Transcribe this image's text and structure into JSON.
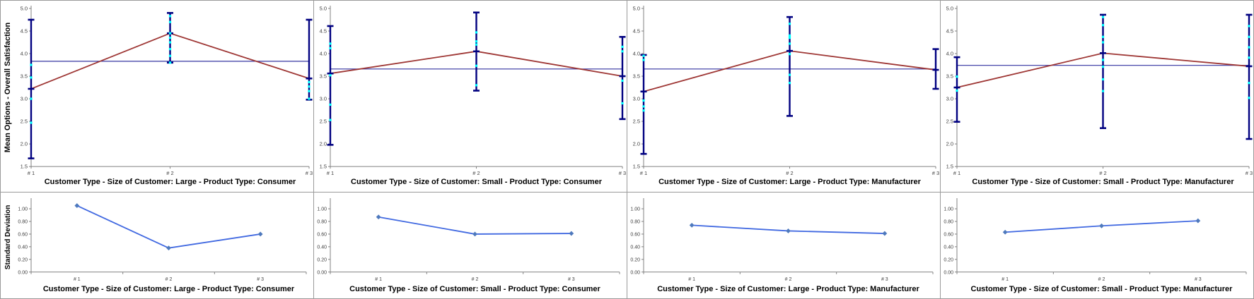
{
  "colors": {
    "axis": "#808080",
    "tick_text": "#3f3f3f",
    "title_text": "#000000",
    "mean_line": "#9e3634",
    "error_bar": "#000080",
    "reference_line": "#3333a0",
    "data_point": "#00ffff",
    "std_line": "#4169e1",
    "std_marker": "#4e79bd",
    "panel_border": "#9a9a9a"
  },
  "chart_data": [
    {
      "id": "mean-large-consumer",
      "type": "line-errorbar",
      "title": "Customer Type - Size of Customer: Large - Product Type: Consumer",
      "ylabel": "Mean Options - Overall Satisfaction",
      "categories": [
        "# 1",
        "# 2",
        "# 3"
      ],
      "ylim": [
        1.5,
        5.0
      ],
      "ytick_values": [
        5.0,
        4.5,
        4.0,
        3.5,
        3.0,
        2.5,
        2.0,
        1.5
      ],
      "ytick_labels": [
        "5.0",
        "4.5",
        "4.0",
        "3.5",
        "3.0",
        "2.5",
        "2.0",
        "1.5"
      ],
      "series": [
        {
          "name": "mean",
          "values": [
            3.22,
            4.45,
            3.45
          ]
        }
      ],
      "error_low": [
        1.68,
        3.8,
        2.98
      ],
      "error_high": [
        4.75,
        4.9,
        4.75
      ],
      "reference_line": 3.83,
      "scatter_points": [
        [
          3.75,
          3.47,
          3.0,
          2.47
        ],
        [
          4.83,
          4.7,
          4.45,
          4.35,
          4.25,
          4.1,
          3.95,
          3.8
        ],
        [
          3.37,
          3.27,
          3.17,
          3.0
        ]
      ]
    },
    {
      "id": "mean-small-consumer",
      "type": "line-errorbar",
      "title": "Customer Type - Size of Customer: Small - Product Type: Consumer",
      "ylabel": "",
      "categories": [
        "# 1",
        "# 2",
        "# 3"
      ],
      "ylim": [
        1.5,
        5.0
      ],
      "ytick_values": [
        5.0,
        4.5,
        4.0,
        3.5,
        3.0,
        2.5,
        2.0,
        1.5
      ],
      "ytick_labels": [
        "5.0",
        "4.5",
        "4.0",
        "3.5",
        "3.0",
        "2.5",
        "2.0",
        "1.5"
      ],
      "series": [
        {
          "name": "mean",
          "values": [
            3.56,
            4.05,
            3.5
          ]
        }
      ],
      "error_low": [
        1.98,
        3.18,
        2.55
      ],
      "error_high": [
        4.61,
        4.91,
        4.37
      ],
      "reference_line": 3.66,
      "scatter_points": [
        [
          4.22,
          4.12,
          3.52,
          2.87,
          2.53
        ],
        [
          4.47,
          4.27,
          4.2,
          3.73,
          3.3
        ],
        [
          4.15,
          4.05,
          3.4,
          2.9
        ]
      ]
    },
    {
      "id": "mean-large-manufacturer",
      "type": "line-errorbar",
      "title": "Customer Type - Size of Customer: Large - Product Type: Manufacturer",
      "ylabel": "",
      "categories": [
        "# 1",
        "# 2",
        "# 3"
      ],
      "ylim": [
        1.5,
        5.0
      ],
      "ytick_values": [
        5.0,
        4.5,
        4.0,
        3.5,
        3.0,
        2.5,
        2.0,
        1.5
      ],
      "ytick_labels": [
        "5.0",
        "4.5",
        "4.0",
        "3.5",
        "3.0",
        "2.5",
        "2.0",
        "1.5"
      ],
      "series": [
        {
          "name": "mean",
          "values": [
            3.16,
            4.06,
            3.64
          ]
        }
      ],
      "error_low": [
        1.78,
        2.62,
        3.22
      ],
      "error_high": [
        3.97,
        4.81,
        4.1
      ],
      "reference_line": 3.66,
      "scatter_points": [
        [
          3.95,
          3.86,
          2.96,
          2.83,
          2.74
        ],
        [
          4.66,
          4.4,
          4.35,
          4.22,
          3.99,
          3.53,
          3.35
        ],
        []
      ]
    },
    {
      "id": "mean-small-manufacturer",
      "type": "line-errorbar",
      "title": "Customer Type - Size of Customer: Small - Product Type: Manufacturer",
      "ylabel": "",
      "categories": [
        "# 1",
        "# 2",
        "# 3"
      ],
      "ylim": [
        1.5,
        5.0
      ],
      "ytick_values": [
        5.0,
        4.5,
        4.0,
        3.5,
        3.0,
        2.5,
        2.0,
        1.5
      ],
      "ytick_labels": [
        "5.0",
        "4.5",
        "4.0",
        "3.5",
        "3.0",
        "2.5",
        "2.0",
        "1.5"
      ],
      "series": [
        {
          "name": "mean",
          "values": [
            3.25,
            4.01,
            3.72
          ]
        }
      ],
      "error_low": [
        2.49,
        2.35,
        2.11
      ],
      "error_high": [
        3.92,
        4.86,
        4.86
      ],
      "reference_line": 3.74,
      "scatter_points": [
        [
          3.49,
          3.18
        ],
        [
          4.81,
          4.63,
          4.37,
          4.25,
          3.86,
          3.71,
          3.43,
          3.17
        ],
        [
          4.61,
          4.37,
          4.14,
          3.91,
          3.35,
          3.02
        ]
      ]
    },
    {
      "id": "std-large-consumer",
      "type": "line",
      "title": "Customer Type - Size of Customer: Large - Product Type: Consumer",
      "ylabel": "Standard Deviation",
      "categories": [
        "# 1",
        "# 2",
        "# 3"
      ],
      "ylim": [
        0.0,
        1.1
      ],
      "ytick_values": [
        1.0,
        0.8,
        0.6,
        0.4,
        0.2,
        0.0
      ],
      "ytick_labels": [
        "1.00",
        "0.80",
        "0.60",
        "0.40",
        "0.20",
        "0.00"
      ],
      "values": [
        1.05,
        0.38,
        0.6
      ]
    },
    {
      "id": "std-small-consumer",
      "type": "line",
      "title": "Customer Type - Size of Customer: Small - Product Type: Consumer",
      "ylabel": "",
      "categories": [
        "# 1",
        "# 2",
        "# 3"
      ],
      "ylim": [
        0.0,
        1.1
      ],
      "ytick_values": [
        1.0,
        0.8,
        0.6,
        0.4,
        0.2,
        0.0
      ],
      "ytick_labels": [
        "1.00",
        "0.80",
        "0.60",
        "0.40",
        "0.20",
        "0.00"
      ],
      "values": [
        0.87,
        0.6,
        0.61
      ]
    },
    {
      "id": "std-large-manufacturer",
      "type": "line",
      "title": "Customer Type - Size of Customer: Large - Product Type: Manufacturer",
      "ylabel": "",
      "categories": [
        "# 1",
        "# 2",
        "# 3"
      ],
      "ylim": [
        0.0,
        1.1
      ],
      "ytick_values": [
        1.0,
        0.8,
        0.6,
        0.4,
        0.2,
        0.0
      ],
      "ytick_labels": [
        "1.00",
        "0.80",
        "0.60",
        "0.40",
        "0.20",
        "0.00"
      ],
      "values": [
        0.74,
        0.65,
        0.61
      ]
    },
    {
      "id": "std-small-manufacturer",
      "type": "line",
      "title": "Customer Type - Size of Customer: Small - Product Type: Manufacturer",
      "ylabel": "",
      "categories": [
        "# 1",
        "# 2",
        "# 3"
      ],
      "ylim": [
        0.0,
        1.1
      ],
      "ytick_values": [
        1.0,
        0.8,
        0.6,
        0.4,
        0.2,
        0.0
      ],
      "ytick_labels": [
        "1.00",
        "0.80",
        "0.60",
        "0.40",
        "0.20",
        "0.00"
      ],
      "values": [
        0.63,
        0.73,
        0.81
      ]
    }
  ]
}
